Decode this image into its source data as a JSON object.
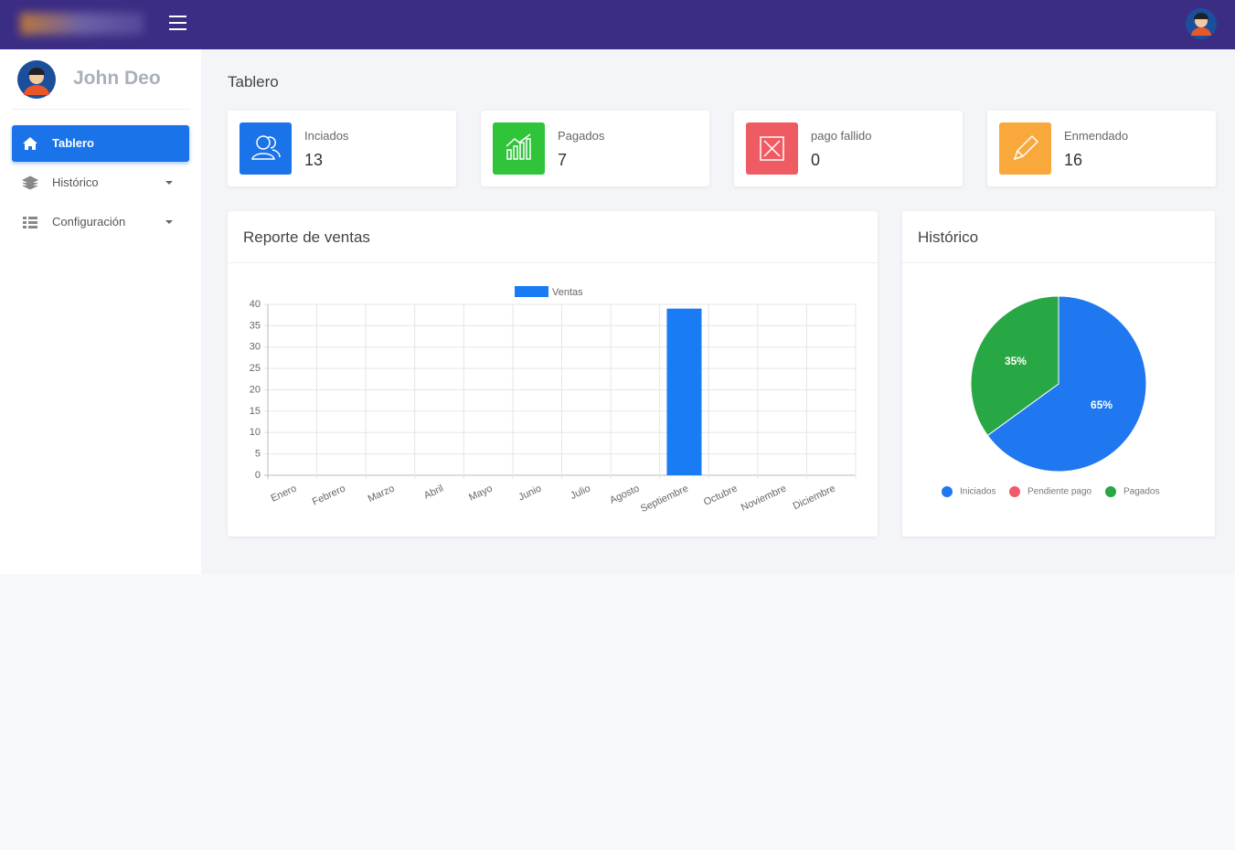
{
  "sidebar": {
    "user_name": "John Deo",
    "menu": [
      "Tablero",
      "Histórico",
      "Configuración"
    ]
  },
  "page_title": "Tablero",
  "stat_cards": [
    {
      "label": "Inciados",
      "value": 13
    },
    {
      "label": "Pagados",
      "value": 7
    },
    {
      "label": "pago fallido",
      "value": 0
    },
    {
      "label": "Enmendado",
      "value": 16
    }
  ],
  "chart_data": [
    {
      "type": "bar",
      "title": "Reporte de ventas",
      "categories": [
        "Enero",
        "Febrero",
        "Marzo",
        "Abril",
        "Mayo",
        "Junio",
        "Julio",
        "Agosto",
        "Septiembre",
        "Octubre",
        "Noviembre",
        "Diciembre"
      ],
      "series": [
        {
          "name": "Ventas",
          "color": "#1a7cf5",
          "values": [
            0,
            0,
            0,
            0,
            0,
            0,
            0,
            0,
            39,
            0,
            0,
            0
          ]
        }
      ],
      "ylim": [
        0,
        40
      ],
      "yticks": [
        0,
        5,
        10,
        15,
        20,
        25,
        30,
        35,
        40
      ],
      "grid": true,
      "legend": "top"
    },
    {
      "type": "pie",
      "title": "Histórico",
      "categories": [
        "Iniciados",
        "Pendiente pago",
        "Pagados"
      ],
      "values": [
        65,
        0,
        35
      ],
      "value_labels": [
        "65%",
        null,
        "35%"
      ],
      "colors": [
        "#1f78f0",
        "#ef5b68",
        "#28a745"
      ],
      "legend": "bottom"
    }
  ]
}
